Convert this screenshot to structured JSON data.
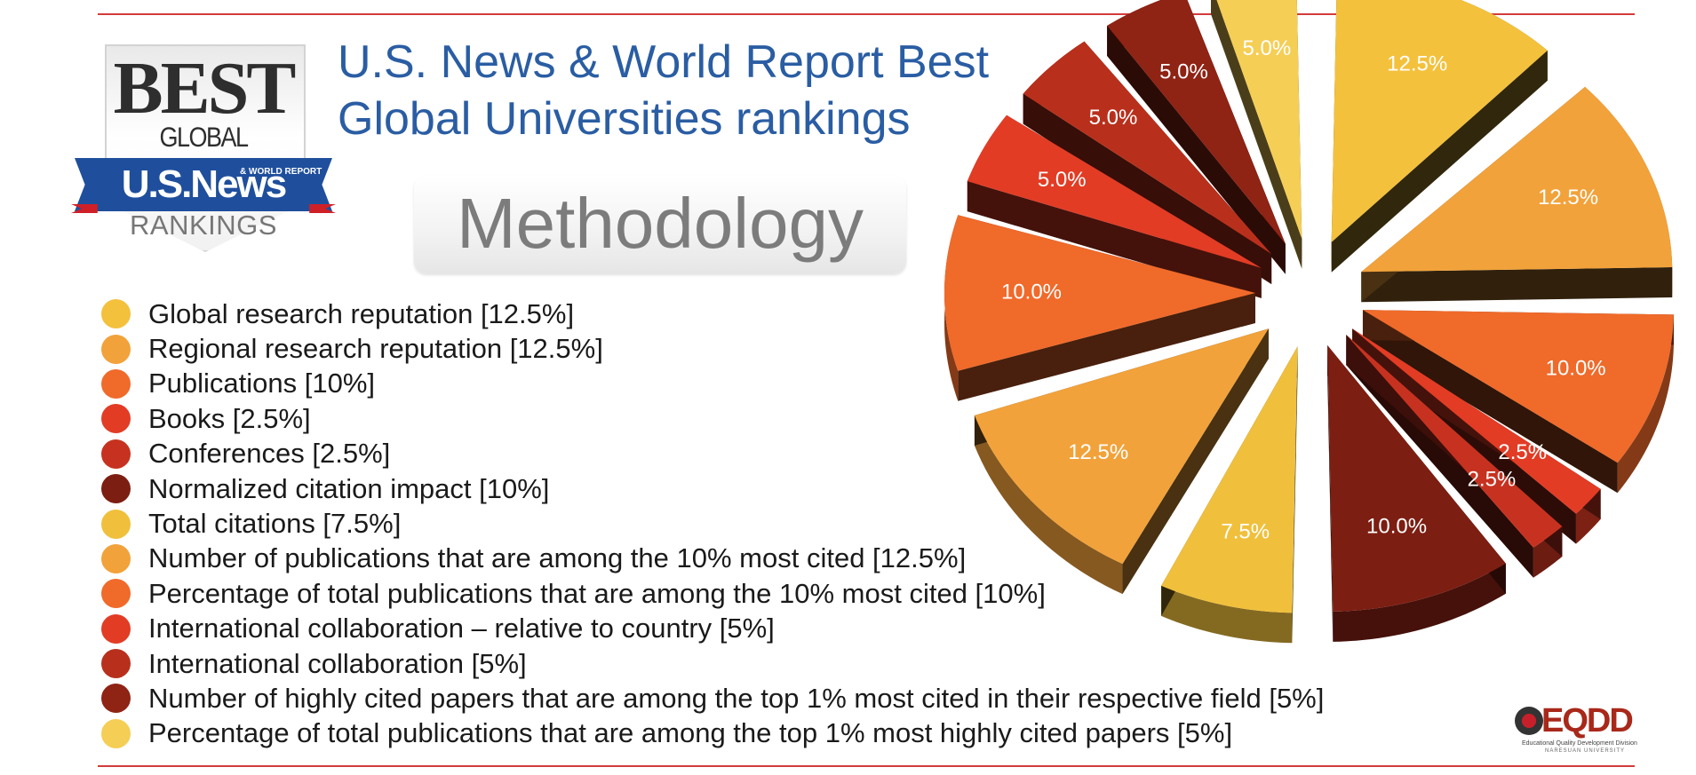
{
  "colors": {
    "rule": "#d33b3b",
    "title": "#2a5da3",
    "gold": "#f4c13d",
    "orange": "#f2a23a",
    "orangeRed": "#f06a2a",
    "red": "#e23c25",
    "darkRed": "#a8281a",
    "maroon": "#7d1e12"
  },
  "badge": {
    "best": "BEST",
    "global_universities": "GLOBAL UNIVERSITIES",
    "us_news": "U.S.News",
    "world_report": "& WORLD REPORT",
    "rankings": "RANKINGS"
  },
  "header": {
    "title_line1": "U.S. News & World Report Best",
    "title_line2": "Global Universities rankings",
    "subtitle": "Methodology"
  },
  "chart_data": {
    "type": "pie",
    "legend_placement": "left",
    "title": "U.S. News & World Report Best Global Universities rankings",
    "categories": [
      "Global research reputation [12.5%]",
      "Regional research reputation [12.5%]",
      "Publications [10%]",
      "Books [2.5%]",
      "Conferences [2.5%]",
      "Normalized citation impact [10%]",
      "Total citations [7.5%]",
      "Number of publications that are among the 10% most cited [12.5%]",
      "Percentage of total publications that are among the 10% most cited [10%]",
      "International collaboration – relative to country [5%]",
      "International collaboration [5%]",
      "Number of highly cited papers that are among the top 1% most cited in their respective field [5%]",
      "Percentage of total publications that are among the top 1% most highly cited papers [5%]"
    ],
    "values": [
      12.5,
      12.5,
      10,
      2.5,
      2.5,
      10,
      7.5,
      12.5,
      10,
      5,
      5,
      5,
      5
    ],
    "slice_labels": [
      "12.5%",
      "12.5%",
      "10.0%",
      "2.5%",
      "2.5%",
      "10.0%",
      "7.5%",
      "12.5%",
      "10.0%",
      "5.0%",
      "5.0%",
      "5.0%",
      "5.0%"
    ],
    "colors": [
      "#f4c13d",
      "#f2a23a",
      "#f06a2a",
      "#e23c25",
      "#c73220",
      "#7d1e12",
      "#f0c03c",
      "#f2a23a",
      "#f06a2a",
      "#e23c25",
      "#b8301c",
      "#8f2314",
      "#f5ce56"
    ]
  },
  "logo": {
    "eqdd": "EQDD",
    "caption": "Educational Quality Development Division",
    "university": "NARESUAN UNIVERSITY"
  }
}
